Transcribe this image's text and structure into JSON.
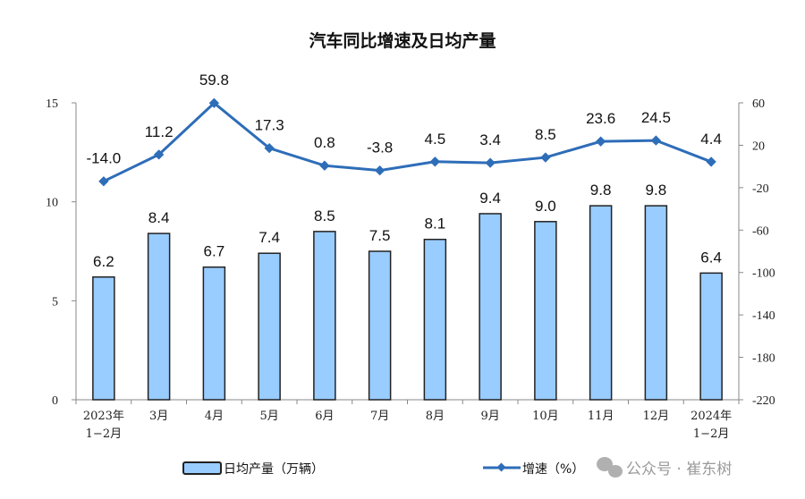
{
  "chart_data": {
    "type": "bar+line",
    "title": "汽车同比增速及日均产量",
    "categories": [
      [
        "2023年",
        "1−2月"
      ],
      [
        "3月"
      ],
      [
        "4月"
      ],
      [
        "5月"
      ],
      [
        "6月"
      ],
      [
        "7月"
      ],
      [
        "8月"
      ],
      [
        "9月"
      ],
      [
        "10月"
      ],
      [
        "11月"
      ],
      [
        "12月"
      ],
      [
        "2024年",
        "1−2月"
      ]
    ],
    "series": [
      {
        "name": "日均产量（万辆）",
        "type": "bar",
        "axis": "left",
        "color": "#99CCFF",
        "values": [
          6.2,
          8.4,
          6.7,
          7.4,
          8.5,
          7.5,
          8.1,
          9.4,
          9.0,
          9.8,
          9.8,
          6.4
        ],
        "labels": [
          "6.2",
          "8.4",
          "6.7",
          "7.4",
          "8.5",
          "7.5",
          "8.1",
          "9.4",
          "9.0",
          "9.8",
          "9.8",
          "6.4"
        ]
      },
      {
        "name": "增速（%）",
        "type": "line",
        "axis": "right",
        "color": "#2E6DB8",
        "values": [
          -14.0,
          11.2,
          59.8,
          17.3,
          0.8,
          -3.8,
          4.5,
          3.4,
          8.5,
          23.6,
          24.5,
          4.4
        ],
        "labels": [
          "-14.0",
          "11.2",
          "59.8",
          "17.3",
          "0.8",
          "-3.8",
          "4.5",
          "3.4",
          "8.5",
          "23.6",
          "24.5",
          "4.4"
        ]
      }
    ],
    "left_axis": {
      "ylim": [
        0,
        15
      ],
      "ticks": [
        "0",
        "5",
        "10",
        "15"
      ]
    },
    "right_axis": {
      "ylim": [
        -220,
        60
      ],
      "ticks": [
        "-220",
        "-180",
        "-140",
        "-100",
        "-60",
        "-20",
        "20",
        "60"
      ]
    },
    "grid": false,
    "legend": "bottom"
  },
  "watermark": {
    "text": "公众号 · 崔东树",
    "icon": "wechat-icon"
  }
}
